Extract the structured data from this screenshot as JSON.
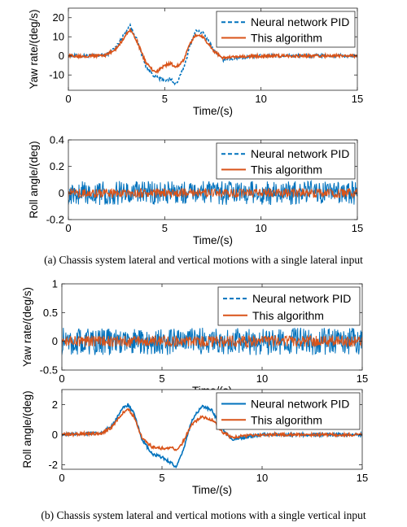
{
  "captions": {
    "a": "(a) Chassis system lateral and vertical motions with a single lateral input",
    "b": "(b) Chassis system lateral and vertical motions with a single vertical input"
  },
  "colors": {
    "blue": "#0072BD",
    "orange": "#D95319"
  },
  "chart_data": [
    {
      "id": "a-top",
      "type": "line",
      "xlabel": "Time/(s)",
      "ylabel": "Yaw rate/(deg/s)",
      "xlim": [
        0,
        15
      ],
      "ylim": [
        -18,
        25
      ],
      "xticks": [
        0,
        5,
        10,
        15
      ],
      "yticks": [
        -10,
        0,
        10,
        20
      ],
      "legend": "top-right",
      "series": [
        {
          "name": "Neural network PID",
          "style": "dashed",
          "color": "#0072BD",
          "x": [
            0,
            1,
            2,
            2.5,
            3,
            3.2,
            3.5,
            4,
            4.5,
            5,
            5.3,
            5.6,
            6,
            6.3,
            6.6,
            7,
            7.5,
            8,
            9,
            10,
            12,
            15
          ],
          "y": [
            0,
            0,
            0.5,
            5,
            13,
            16,
            10,
            -5,
            -11,
            -13,
            -12,
            -15,
            -6,
            5,
            13,
            12,
            4,
            -2,
            -1,
            0,
            0,
            0
          ]
        },
        {
          "name": "This algorithm",
          "style": "solid",
          "color": "#D95319",
          "x": [
            0,
            1,
            2,
            2.5,
            3,
            3.2,
            3.5,
            4,
            4.5,
            5,
            5.3,
            5.6,
            6,
            6.3,
            6.6,
            7,
            7.5,
            8,
            9,
            10,
            12,
            15
          ],
          "y": [
            0,
            0,
            0.5,
            4,
            11,
            14,
            9,
            -3,
            -9,
            -5,
            -4,
            -6,
            -2,
            6,
            11,
            10,
            3,
            -1,
            -0.5,
            0,
            0,
            0
          ]
        }
      ]
    },
    {
      "id": "a-bottom",
      "type": "line",
      "xlabel": "Time/(s)",
      "ylabel": "Roll angle/(deg)",
      "xlim": [
        0,
        15
      ],
      "ylim": [
        -0.2,
        0.4
      ],
      "xticks": [
        0,
        5,
        10,
        15
      ],
      "yticks": [
        -0.2,
        0,
        0.2,
        0.4
      ],
      "legend": "top-right",
      "series": [
        {
          "name": "Neural network PID",
          "style": "dashed",
          "color": "#0072BD",
          "noise_amplitude": 0.09,
          "baseline": 0
        },
        {
          "name": "This algorithm",
          "style": "solid",
          "color": "#D95319",
          "noise_amplitude": 0.035,
          "baseline": 0
        }
      ]
    },
    {
      "id": "b-top",
      "type": "line",
      "xlabel": "Time/(s)",
      "ylabel": "Yaw rate/(deg/s)",
      "xlim": [
        0,
        15
      ],
      "ylim": [
        -0.5,
        1
      ],
      "xticks": [
        0,
        5,
        10,
        15
      ],
      "yticks": [
        -0.5,
        0,
        0.5,
        1
      ],
      "legend": "top-right",
      "series": [
        {
          "name": "Neural network PID",
          "style": "dashed",
          "color": "#0072BD",
          "noise_amplitude": 0.24,
          "baseline": 0
        },
        {
          "name": "This algorithm",
          "style": "solid",
          "color": "#D95319",
          "noise_amplitude": 0.1,
          "baseline": 0
        }
      ]
    },
    {
      "id": "b-bottom",
      "type": "line",
      "xlabel": "Time/(s)",
      "ylabel": "Roll angle/(deg)",
      "xlim": [
        0,
        15
      ],
      "ylim": [
        -2.3,
        3
      ],
      "xticks": [
        0,
        5,
        10,
        15
      ],
      "yticks": [
        -2,
        0,
        2
      ],
      "legend": "top-right",
      "series": [
        {
          "name": "Neural network PID",
          "style": "solid",
          "color": "#0072BD",
          "x": [
            0,
            2,
            2.5,
            3,
            3.3,
            3.6,
            4,
            4.5,
            5,
            5.5,
            5.7,
            6,
            6.5,
            7,
            7.5,
            8,
            8.5,
            9,
            10,
            12,
            15
          ],
          "y": [
            0,
            0.1,
            0.6,
            1.7,
            2.0,
            1.4,
            -0.3,
            -1.3,
            -1.5,
            -1.9,
            -2.2,
            -1.3,
            1.0,
            1.9,
            1.6,
            0.4,
            -0.3,
            -0.2,
            0,
            0,
            0
          ]
        },
        {
          "name": "This algorithm",
          "style": "solid",
          "color": "#D95319",
          "x": [
            0,
            2,
            2.5,
            3,
            3.3,
            3.6,
            4,
            4.5,
            5,
            5.5,
            5.7,
            6,
            6.5,
            7,
            7.5,
            8,
            8.5,
            9,
            10,
            12,
            15
          ],
          "y": [
            0,
            0.1,
            0.5,
            1.4,
            1.7,
            1.2,
            -0.2,
            -0.8,
            -0.9,
            -0.9,
            -1.0,
            -0.6,
            0.7,
            1.2,
            1.0,
            0.2,
            -0.2,
            -0.1,
            0,
            0,
            0
          ]
        }
      ]
    }
  ]
}
